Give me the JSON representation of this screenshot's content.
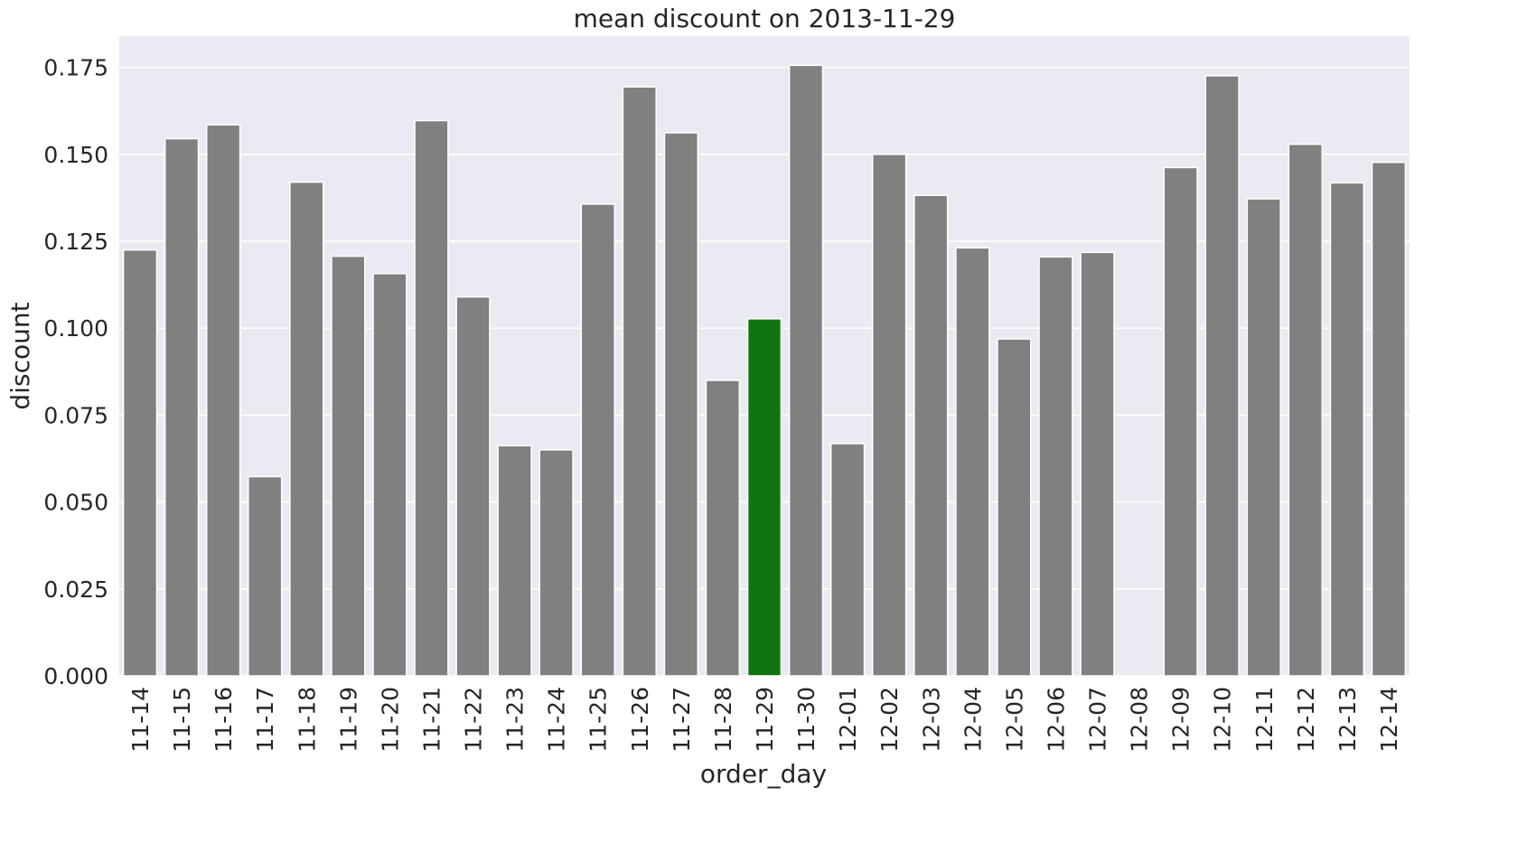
{
  "chart_data": {
    "type": "bar",
    "title": "mean discount on 2013-11-29",
    "xlabel": "order_day",
    "ylabel": "discount",
    "categories": [
      "11-14",
      "11-15",
      "11-16",
      "11-17",
      "11-18",
      "11-19",
      "11-20",
      "11-21",
      "11-22",
      "11-23",
      "11-24",
      "11-25",
      "11-26",
      "11-27",
      "11-28",
      "11-29",
      "11-30",
      "12-01",
      "12-02",
      "12-03",
      "12-04",
      "12-05",
      "12-06",
      "12-07",
      "12-08",
      "12-09",
      "12-10",
      "12-11",
      "12-12",
      "12-13",
      "12-14"
    ],
    "values": [
      0.1225,
      0.1545,
      0.1585,
      0.0573,
      0.142,
      0.1207,
      0.1157,
      0.1597,
      0.109,
      0.0662,
      0.065,
      0.1357,
      0.1694,
      0.1562,
      0.085,
      0.1027,
      0.1756,
      0.0668,
      0.15,
      0.1382,
      0.1231,
      0.0969,
      0.1205,
      0.1218,
      null,
      0.1462,
      0.1726,
      0.1372,
      0.1529,
      0.1418,
      0.1477
    ],
    "highlight_category": "11-29",
    "yticks": [
      "0.000",
      "0.025",
      "0.050",
      "0.075",
      "0.100",
      "0.125",
      "0.150",
      "0.175"
    ],
    "ylim": [
      0,
      0.184
    ],
    "grid": true,
    "colors": {
      "bar": "#808080",
      "highlight": "#107510",
      "plot_background": "#eaeaf2",
      "grid": "#ffffff",
      "text": "#262626"
    }
  }
}
